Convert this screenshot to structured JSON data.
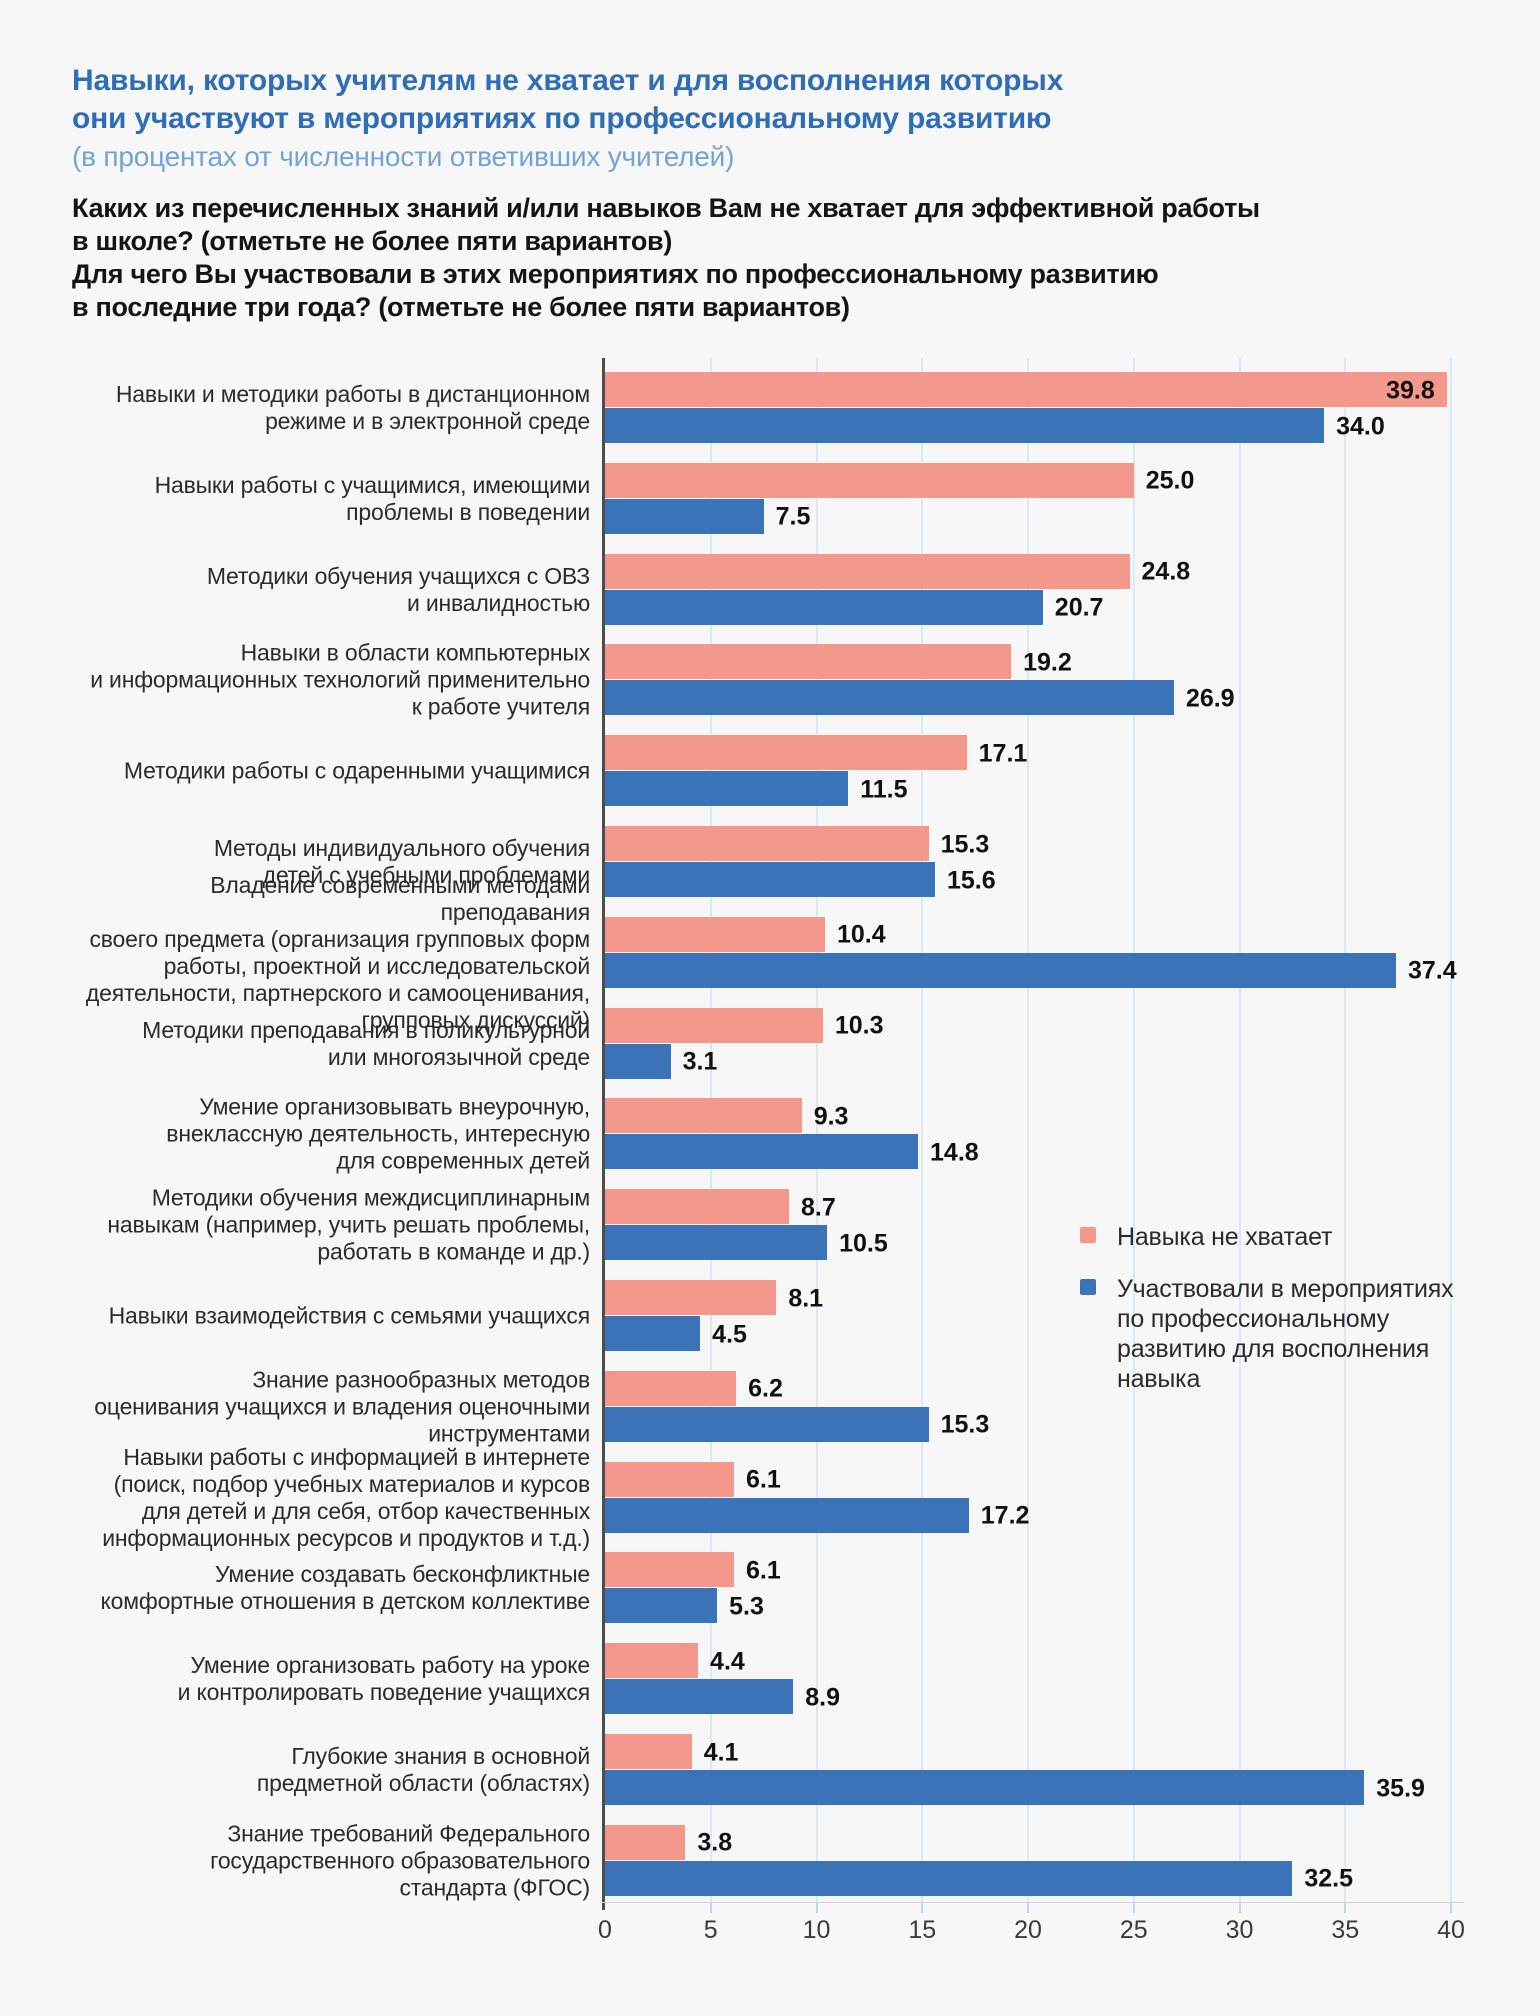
{
  "header": {
    "title": "Навыки, которых учителям не хватает и для восполнения которых\nони участвуют в мероприятиях по профессиональному развитию",
    "subtitle": "(в процентах от численности ответивших учителей)",
    "questions": "Каких из перечисленных знаний и/или навыков Вам не хватает для эффективной работы\nв школе? (отметьте не более пяти вариантов)\nДля чего Вы участвовали в этих мероприятиях по профессиональному развитию\nв последние три года? (отметьте не более пяти вариантов)"
  },
  "colors": {
    "background": "#f7f7f8",
    "title_blue": "#2f6eb6",
    "subtitle_blue": "#74a3d9",
    "gridline": "#d9eaf6",
    "axis": "#4d4d4d",
    "value_label": "#111111"
  },
  "chart_data": {
    "type": "bar",
    "orientation": "horizontal",
    "xlim": [
      0,
      40
    ],
    "x_ticks": [
      0,
      5,
      10,
      15,
      20,
      25,
      30,
      35,
      40
    ],
    "grid": true,
    "legend_position": "right-middle",
    "value_label_decimals": 1,
    "categories": [
      "Навыки и методики работы в дистанционном\nрежиме и в электронной среде",
      "Навыки работы с учащимися, имеющими\nпроблемы в поведении",
      "Методики обучения учащихся с ОВЗ\nи инвалидностью",
      "Навыки в области компьютерных\nи информационных технологий применительно\nк работе учителя",
      "Методики работы с одаренными учащимися",
      "Методы индивидуального обучения\nдетей с учебными проблемами",
      "Владение современными методами преподавания\nсвоего предмета (организация групповых форм\nработы, проектной и исследовательской\nдеятельности, партнерского и самооценивания,\nгрупповых дискуссий)",
      "Методики преподавания в поликультурной\nили многоязычной среде",
      "Умение организовывать внеурочную,\nвнеклассную деятельность, интересную\nдля современных детей",
      "Методики обучения междисциплинарным\nнавыкам (например, учить решать проблемы,\nработать в команде и др.)",
      "Навыки взаимодействия с семьями учащихся",
      "Знание разнообразных методов\nоценивания учащихся и владения оценочными\nинструментами",
      "Навыки работы с информацией в интернете\n(поиск, подбор учебных материалов и курсов\nдля детей и для себя, отбор качественных\nинформационных ресурсов и продуктов и т.д.)",
      "Умение создавать бесконфликтные\nкомфортные отношения в детском коллективе",
      "Умение организовать работу на уроке\nи контролировать поведение учащихся",
      "Глубокие знания в основной\nпредметной области (областях)",
      "Знание требований Федерального\nгосударственного образовательного\nстандарта (ФГОС)"
    ],
    "series": [
      {
        "name": "Навыка не хватает",
        "color": "#f4988c",
        "values": [
          39.8,
          25.0,
          24.8,
          19.2,
          17.1,
          15.3,
          10.4,
          10.3,
          9.3,
          8.7,
          8.1,
          6.2,
          6.1,
          6.1,
          4.4,
          4.1,
          3.8
        ]
      },
      {
        "name": "Участвовали в мероприятиях\nпо профессиональному\nразвитию для восполнения\nнавыка",
        "color": "#3b73b8",
        "values": [
          34.0,
          7.5,
          20.7,
          26.9,
          11.5,
          15.6,
          37.4,
          3.1,
          14.8,
          10.5,
          4.5,
          15.3,
          17.2,
          5.3,
          8.9,
          35.9,
          32.5
        ]
      }
    ]
  }
}
